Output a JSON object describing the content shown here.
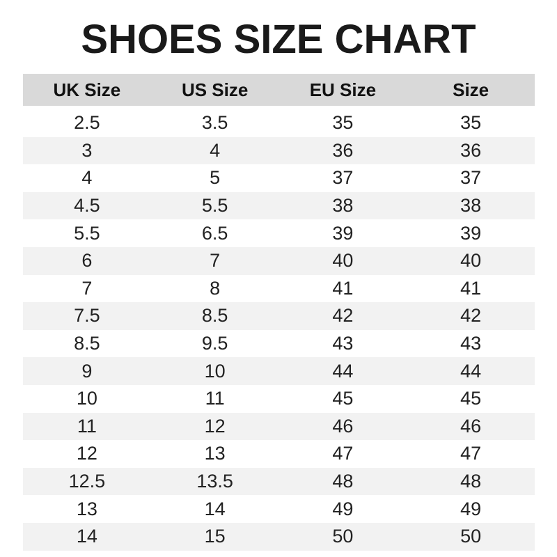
{
  "chart_data": {
    "type": "table",
    "title": "SHOES SIZE CHART",
    "columns": [
      "UK Size",
      "US Size",
      "EU Size",
      "Size"
    ],
    "rows": [
      [
        "2.5",
        "3.5",
        "35",
        "35"
      ],
      [
        "3",
        "4",
        "36",
        "36"
      ],
      [
        "4",
        "5",
        "37",
        "37"
      ],
      [
        "4.5",
        "5.5",
        "38",
        "38"
      ],
      [
        "5.5",
        "6.5",
        "39",
        "39"
      ],
      [
        "6",
        "7",
        "40",
        "40"
      ],
      [
        "7",
        "8",
        "41",
        "41"
      ],
      [
        "7.5",
        "8.5",
        "42",
        "42"
      ],
      [
        "8.5",
        "9.5",
        "43",
        "43"
      ],
      [
        "9",
        "10",
        "44",
        "44"
      ],
      [
        "10",
        "11",
        "45",
        "45"
      ],
      [
        "11",
        "12",
        "46",
        "46"
      ],
      [
        "12",
        "13",
        "47",
        "47"
      ],
      [
        "12.5",
        "13.5",
        "48",
        "48"
      ],
      [
        "13",
        "14",
        "49",
        "49"
      ],
      [
        "14",
        "15",
        "50",
        "50"
      ]
    ],
    "colors": {
      "header_bg": "#d9d9d9",
      "stripe_bg": "#f2f2f2"
    }
  }
}
